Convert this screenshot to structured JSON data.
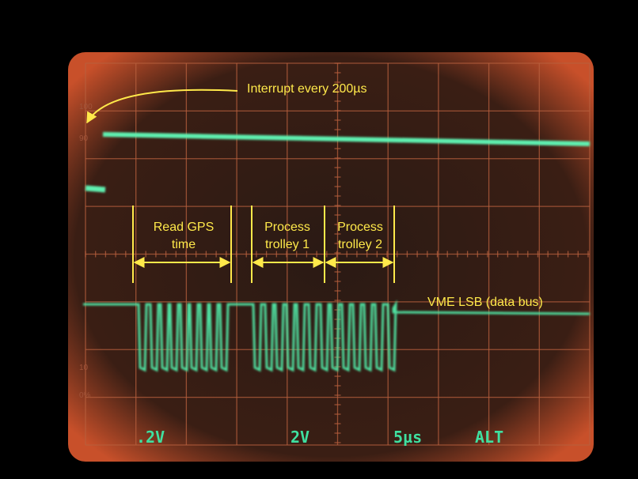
{
  "annotations": {
    "interrupt": "Interrupt every 200µs",
    "read_gps": [
      "Read GPS",
      "time"
    ],
    "trolley_1": [
      "Process",
      "trolley 1"
    ],
    "trolley_2": [
      "Process",
      "trolley 2"
    ],
    "data_bus": "VME LSB (data bus)"
  },
  "graticule_labels": [
    "100",
    "90",
    "10",
    "0%"
  ],
  "readouts": [
    ".2V",
    "2V",
    "5µs",
    "ALT"
  ]
}
